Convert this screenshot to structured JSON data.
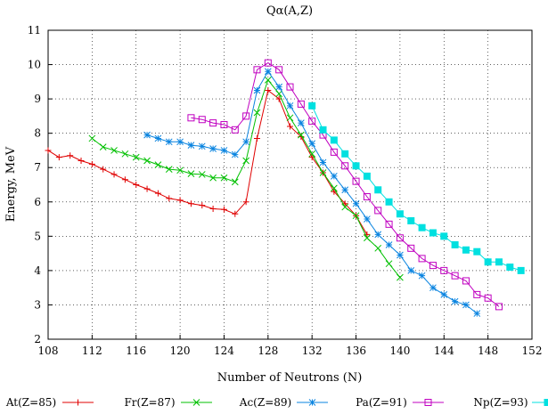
{
  "chart_data": {
    "type": "line",
    "title": "Qα(A,Z)",
    "xlabel": "Number of Neutrons (N)",
    "ylabel": "Energy, MeV",
    "xlim": [
      108,
      152
    ],
    "ylim": [
      2,
      11
    ],
    "xticks": [
      108,
      112,
      116,
      120,
      124,
      128,
      132,
      136,
      140,
      144,
      148,
      152
    ],
    "yticks": [
      2,
      3,
      4,
      5,
      6,
      7,
      8,
      9,
      10,
      11
    ],
    "grid": "dotted",
    "legend_position": "bottom",
    "series": [
      {
        "name": "At(Z=85)",
        "color": "#e00000",
        "marker": "plus",
        "x": [
          108,
          109,
          110,
          111,
          112,
          113,
          114,
          115,
          116,
          117,
          118,
          119,
          120,
          121,
          122,
          123,
          124,
          125,
          126,
          127,
          128,
          129,
          130,
          131,
          132,
          133,
          134,
          135,
          136,
          137
        ],
        "y": [
          7.5,
          7.3,
          7.35,
          7.2,
          7.1,
          6.95,
          6.8,
          6.65,
          6.5,
          6.38,
          6.25,
          6.1,
          6.05,
          5.95,
          5.9,
          5.8,
          5.78,
          5.65,
          6.0,
          7.85,
          9.25,
          9.0,
          8.2,
          7.9,
          7.3,
          6.85,
          6.3,
          5.95,
          5.6,
          5.05
        ]
      },
      {
        "name": "Fr(Z=87)",
        "color": "#00c000",
        "marker": "x",
        "x": [
          112,
          113,
          114,
          115,
          116,
          117,
          118,
          119,
          120,
          121,
          122,
          123,
          124,
          125,
          126,
          127,
          128,
          129,
          130,
          131,
          132,
          133,
          134,
          135,
          136,
          137,
          138,
          139,
          140
        ],
        "y": [
          7.85,
          7.6,
          7.5,
          7.4,
          7.3,
          7.2,
          7.08,
          6.95,
          6.92,
          6.82,
          6.8,
          6.7,
          6.7,
          6.58,
          7.2,
          8.6,
          9.55,
          9.15,
          8.45,
          7.95,
          7.4,
          6.85,
          6.4,
          5.85,
          5.6,
          4.95,
          4.65,
          4.2,
          3.8
        ]
      },
      {
        "name": "Ac(Z=89)",
        "color": "#0a84e0",
        "marker": "star",
        "x": [
          117,
          118,
          119,
          120,
          121,
          122,
          123,
          124,
          125,
          126,
          127,
          128,
          129,
          130,
          131,
          132,
          133,
          134,
          135,
          136,
          137,
          138,
          139,
          140,
          141,
          142,
          143,
          144,
          145,
          146,
          147
        ],
        "y": [
          7.95,
          7.85,
          7.75,
          7.75,
          7.65,
          7.62,
          7.55,
          7.5,
          7.38,
          7.75,
          9.25,
          9.8,
          9.35,
          8.8,
          8.3,
          7.7,
          7.15,
          6.75,
          6.35,
          5.95,
          5.5,
          5.05,
          4.75,
          4.45,
          4.0,
          3.85,
          3.5,
          3.3,
          3.1,
          3.0,
          2.75
        ]
      },
      {
        "name": "Pa(Z=91)",
        "color": "#c000c0",
        "marker": "square",
        "x": [
          121,
          122,
          123,
          124,
          125,
          126,
          127,
          128,
          129,
          130,
          131,
          132,
          133,
          134,
          135,
          136,
          137,
          138,
          139,
          140,
          141,
          142,
          143,
          144,
          145,
          146,
          147,
          148,
          149
        ],
        "y": [
          8.45,
          8.4,
          8.3,
          8.25,
          8.1,
          8.5,
          9.85,
          10.05,
          9.85,
          9.35,
          8.85,
          8.35,
          7.95,
          7.45,
          7.05,
          6.6,
          6.15,
          5.75,
          5.35,
          4.95,
          4.65,
          4.35,
          4.15,
          4.0,
          3.85,
          3.7,
          3.3,
          3.2,
          2.95
        ]
      },
      {
        "name": "Np(Z=93)",
        "color": "#00e0e0",
        "marker": "filled-square",
        "x": [
          132,
          133,
          134,
          135,
          136,
          137,
          138,
          139,
          140,
          141,
          142,
          143,
          144,
          145,
          146,
          147,
          148,
          149,
          150,
          151
        ],
        "y": [
          8.8,
          8.1,
          7.8,
          7.4,
          7.05,
          6.75,
          6.35,
          6.0,
          5.65,
          5.45,
          5.25,
          5.1,
          5.0,
          4.75,
          4.6,
          4.55,
          4.25,
          4.25,
          4.1,
          4.0
        ]
      }
    ]
  }
}
